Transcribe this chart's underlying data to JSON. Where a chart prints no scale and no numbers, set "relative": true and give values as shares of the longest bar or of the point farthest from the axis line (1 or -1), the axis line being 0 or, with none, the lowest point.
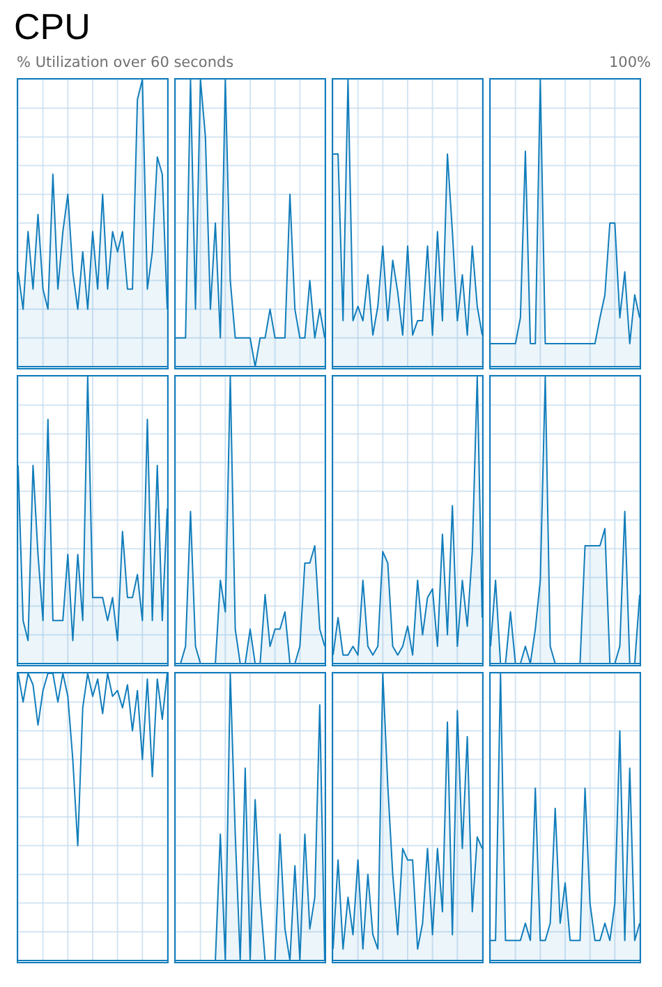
{
  "chart_data": [
    {
      "type": "area",
      "relative": true,
      "title": "CPU",
      "subtitle": "% Utilization over 60 seconds",
      "annotations": [
        "100%"
      ],
      "categories": [
        null,
        null,
        null,
        null,
        null,
        null,
        null,
        null,
        null,
        null,
        null,
        null,
        null,
        null,
        null,
        null,
        null,
        null,
        null,
        null,
        null,
        null,
        null,
        null,
        null,
        null,
        null,
        null,
        null,
        null,
        null
      ],
      "values": [
        0.33,
        0.2,
        0.47,
        0.27,
        0.53,
        0.27,
        0.2,
        0.67,
        0.27,
        0.47,
        0.6,
        0.33,
        0.2,
        0.4,
        0.2,
        0.47,
        0.27,
        0.6,
        0.27,
        0.47,
        0.4,
        0.47,
        0.27,
        0.27,
        0.93,
        1,
        0.27,
        0.4,
        0.73,
        0.67,
        0.2
      ],
      "color": "#117dbb",
      "grid": true
    },
    {
      "type": "area",
      "relative": true,
      "categories": [
        null,
        null,
        null,
        null,
        null,
        null,
        null,
        null,
        null,
        null,
        null,
        null,
        null,
        null,
        null,
        null,
        null,
        null,
        null,
        null,
        null,
        null,
        null,
        null,
        null,
        null,
        null,
        null,
        null,
        null,
        null
      ],
      "values": [
        0.1,
        0.1,
        0.1,
        1,
        0.2,
        1,
        0.8,
        0.2,
        0.5,
        0.1,
        1,
        0.3,
        0.1,
        0.1,
        0.1,
        0.1,
        0,
        0.1,
        0.1,
        0.2,
        0.1,
        0.1,
        0.1,
        0.6,
        0.2,
        0.1,
        0.1,
        0.3,
        0.1,
        0.2,
        0.1
      ],
      "color": "#117dbb",
      "grid": true
    },
    {
      "type": "area",
      "relative": true,
      "categories": [
        null,
        null,
        null,
        null,
        null,
        null,
        null,
        null,
        null,
        null,
        null,
        null,
        null,
        null,
        null,
        null,
        null,
        null,
        null,
        null,
        null,
        null,
        null,
        null,
        null,
        null,
        null,
        null,
        null,
        null,
        null
      ],
      "values": [
        0.74,
        0.74,
        0.16,
        1,
        0.16,
        0.21,
        0.16,
        0.32,
        0.11,
        0.21,
        0.42,
        0.16,
        0.37,
        0.26,
        0.11,
        0.42,
        0.11,
        0.16,
        0.16,
        0.42,
        0.11,
        0.47,
        0.16,
        0.74,
        0.47,
        0.16,
        0.32,
        0.11,
        0.42,
        0.21,
        0.11
      ],
      "color": "#117dbb",
      "grid": true
    },
    {
      "type": "area",
      "relative": true,
      "categories": [
        null,
        null,
        null,
        null,
        null,
        null,
        null,
        null,
        null,
        null,
        null,
        null,
        null,
        null,
        null,
        null,
        null,
        null,
        null,
        null,
        null,
        null,
        null,
        null,
        null,
        null,
        null,
        null,
        null,
        null,
        null
      ],
      "values": [
        0.08,
        0.08,
        0.08,
        0.08,
        0.08,
        0.08,
        0.17,
        0.75,
        0.08,
        0.08,
        1,
        0.08,
        0.08,
        0.08,
        0.08,
        0.08,
        0.08,
        0.08,
        0.08,
        0.08,
        0.08,
        0.08,
        0.17,
        0.25,
        0.5,
        0.5,
        0.17,
        0.33,
        0.08,
        0.25,
        0.17
      ],
      "color": "#117dbb",
      "grid": true
    },
    {
      "type": "area",
      "relative": true,
      "categories": [
        null,
        null,
        null,
        null,
        null,
        null,
        null,
        null,
        null,
        null,
        null,
        null,
        null,
        null,
        null,
        null,
        null,
        null,
        null,
        null,
        null,
        null,
        null,
        null,
        null,
        null,
        null,
        null,
        null,
        null,
        null
      ],
      "values": [
        0.69,
        0.15,
        0.08,
        0.69,
        0.38,
        0.15,
        0.85,
        0.15,
        0.15,
        0.15,
        0.38,
        0.08,
        0.38,
        0.15,
        1,
        0.23,
        0.23,
        0.23,
        0.15,
        0.23,
        0.08,
        0.46,
        0.23,
        0.23,
        0.31,
        0.15,
        0.85,
        0.15,
        0.69,
        0.15,
        0.54
      ],
      "color": "#117dbb",
      "grid": true
    },
    {
      "type": "area",
      "relative": true,
      "categories": [
        null,
        null,
        null,
        null,
        null,
        null,
        null,
        null,
        null,
        null,
        null,
        null,
        null,
        null,
        null,
        null,
        null,
        null,
        null,
        null,
        null,
        null,
        null,
        null,
        null,
        null,
        null,
        null,
        null,
        null,
        null
      ],
      "values": [
        0,
        0,
        0.06,
        0.53,
        0.06,
        0,
        0,
        0,
        0,
        0.29,
        0.18,
        1,
        0.12,
        0,
        0,
        0.12,
        0,
        0,
        0.24,
        0.06,
        0.12,
        0.12,
        0.18,
        0,
        0,
        0.06,
        0.35,
        0.35,
        0.41,
        0.12,
        0.06
      ],
      "color": "#117dbb",
      "grid": true
    },
    {
      "type": "area",
      "relative": true,
      "categories": [
        null,
        null,
        null,
        null,
        null,
        null,
        null,
        null,
        null,
        null,
        null,
        null,
        null,
        null,
        null,
        null,
        null,
        null,
        null,
        null,
        null,
        null,
        null,
        null,
        null,
        null,
        null,
        null,
        null,
        null,
        null
      ],
      "values": [
        0.03,
        0.16,
        0.03,
        0.03,
        0.06,
        0.03,
        0.29,
        0.06,
        0.03,
        0.06,
        0.39,
        0.35,
        0.06,
        0.03,
        0.06,
        0.13,
        0.03,
        0.29,
        0.1,
        0.23,
        0.26,
        0.06,
        0.45,
        0.1,
        0.55,
        0.06,
        0.29,
        0.13,
        0.39,
        1,
        0.16
      ],
      "color": "#117dbb",
      "grid": true
    },
    {
      "type": "area",
      "relative": true,
      "categories": [
        null,
        null,
        null,
        null,
        null,
        null,
        null,
        null,
        null,
        null,
        null,
        null,
        null,
        null,
        null,
        null,
        null,
        null,
        null,
        null,
        null,
        null,
        null,
        null,
        null,
        null,
        null,
        null,
        null,
        null,
        null
      ],
      "values": [
        0.06,
        0.29,
        0,
        0,
        0.18,
        0,
        0,
        0.06,
        0,
        0.12,
        0.29,
        1,
        0.06,
        0,
        0,
        0,
        0,
        0,
        0,
        0.41,
        0.41,
        0.41,
        0.41,
        0.47,
        0,
        0,
        0.06,
        0.53,
        0,
        0,
        0.24
      ],
      "color": "#117dbb",
      "grid": true
    },
    {
      "type": "line",
      "relative": true,
      "categories": [
        null,
        null,
        null,
        null,
        null,
        null,
        null,
        null,
        null,
        null,
        null,
        null,
        null,
        null,
        null,
        null,
        null,
        null,
        null,
        null,
        null,
        null,
        null,
        null,
        null,
        null,
        null,
        null,
        null,
        null,
        null
      ],
      "values": [
        1,
        0.9,
        1,
        0.96,
        0.82,
        0.94,
        1,
        1,
        0.9,
        1,
        0.92,
        0.7,
        0.4,
        0.88,
        1,
        0.92,
        0.98,
        0.86,
        1,
        0.92,
        0.94,
        0.88,
        0.96,
        0.8,
        0.94,
        0.7,
        0.98,
        0.64,
        0.98,
        0.84,
        1
      ],
      "color": "#117dbb",
      "grid": true
    },
    {
      "type": "area",
      "relative": true,
      "categories": [
        null,
        null,
        null,
        null,
        null,
        null,
        null,
        null,
        null,
        null,
        null,
        null,
        null,
        null,
        null,
        null,
        null,
        null,
        null,
        null,
        null,
        null,
        null,
        null,
        null,
        null,
        null,
        null,
        null,
        null,
        null
      ],
      "values": [
        0,
        0,
        0,
        0,
        0,
        0,
        0,
        0,
        0,
        0.44,
        0,
        1,
        0.44,
        0,
        0.67,
        0,
        0.56,
        0.22,
        0,
        0,
        0,
        0.44,
        0.11,
        0,
        0.33,
        0,
        0.44,
        0.11,
        0.22,
        0.89,
        0
      ],
      "color": "#117dbb",
      "grid": true
    },
    {
      "type": "area",
      "relative": true,
      "categories": [
        null,
        null,
        null,
        null,
        null,
        null,
        null,
        null,
        null,
        null,
        null,
        null,
        null,
        null,
        null,
        null,
        null,
        null,
        null,
        null,
        null,
        null,
        null,
        null,
        null,
        null,
        null,
        null,
        null,
        null,
        null
      ],
      "values": [
        0.04,
        0.35,
        0.04,
        0.22,
        0.09,
        0.35,
        0.04,
        0.3,
        0.09,
        0.04,
        1,
        0.61,
        0.3,
        0.09,
        0.39,
        0.35,
        0.35,
        0.04,
        0.13,
        0.39,
        0.09,
        0.39,
        0.17,
        0.83,
        0.09,
        0.87,
        0.39,
        0.78,
        0.17,
        0.43,
        0.39
      ],
      "color": "#117dbb",
      "grid": true
    },
    {
      "type": "area",
      "relative": true,
      "categories": [
        null,
        null,
        null,
        null,
        null,
        null,
        null,
        null,
        null,
        null,
        null,
        null,
        null,
        null,
        null,
        null,
        null,
        null,
        null,
        null,
        null,
        null,
        null,
        null,
        null,
        null,
        null,
        null,
        null,
        null,
        null
      ],
      "values": [
        0.07,
        0.07,
        1,
        0.07,
        0.07,
        0.07,
        0.07,
        0.13,
        0.07,
        0.6,
        0.07,
        0.07,
        0.13,
        0.53,
        0.13,
        0.27,
        0.07,
        0.07,
        0.07,
        0.6,
        0.2,
        0.07,
        0.07,
        0.13,
        0.07,
        0.2,
        0.8,
        0.07,
        0.67,
        0.07,
        0.13
      ],
      "color": "#117dbb",
      "grid": true
    }
  ]
}
